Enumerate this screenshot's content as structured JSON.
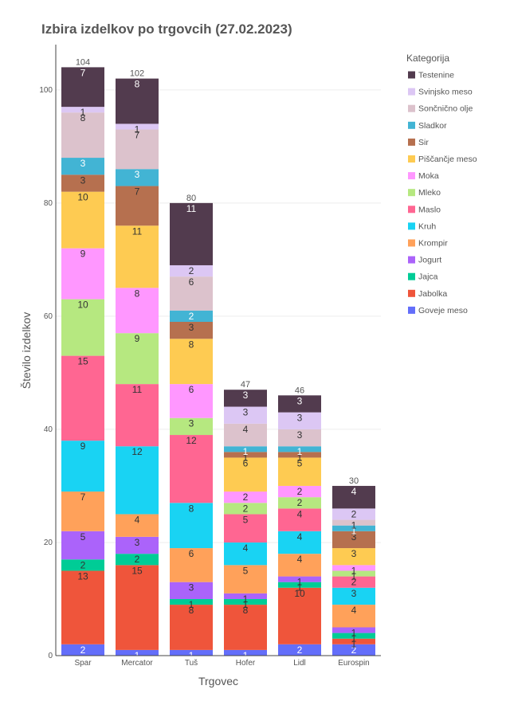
{
  "chart_data": {
    "type": "bar",
    "stacked": true,
    "title": "Izbira izdelkov po trgovcih (27.02.2023)",
    "xlabel": "Trgovec",
    "ylabel": "Število izdelkov",
    "ylim": [
      0,
      108
    ],
    "yticks": [
      0,
      20,
      40,
      60,
      80,
      100
    ],
    "grid": true,
    "legend_title": "Kategorija",
    "legend_position": "right",
    "categories": [
      "Spar",
      "Mercator",
      "Tuš",
      "Hofer",
      "Lidl",
      "Eurospin"
    ],
    "totals": [
      104,
      102,
      80,
      47,
      46,
      30
    ],
    "series": [
      {
        "name": "Goveje meso",
        "color": "#636efa",
        "values": [
          2,
          1,
          1,
          1,
          2,
          2
        ]
      },
      {
        "name": "Jabolka",
        "color": "#ef553b",
        "values": [
          13,
          15,
          8,
          8,
          10,
          1
        ]
      },
      {
        "name": "Jajca",
        "color": "#00cc96",
        "values": [
          2,
          2,
          1,
          1,
          1,
          1
        ]
      },
      {
        "name": "Jogurt",
        "color": "#ab63fa",
        "values": [
          5,
          3,
          3,
          1,
          1,
          1
        ]
      },
      {
        "name": "Krompir",
        "color": "#ffa15a",
        "values": [
          7,
          4,
          6,
          5,
          4,
          4
        ]
      },
      {
        "name": "Kruh",
        "color": "#19d3f3",
        "values": [
          9,
          12,
          8,
          4,
          4,
          3
        ]
      },
      {
        "name": "Maslo",
        "color": "#ff6692",
        "values": [
          15,
          11,
          12,
          5,
          4,
          2
        ]
      },
      {
        "name": "Mleko",
        "color": "#b6e880",
        "values": [
          10,
          9,
          3,
          2,
          2,
          1
        ]
      },
      {
        "name": "Moka",
        "color": "#ff97ff",
        "values": [
          9,
          8,
          6,
          2,
          2,
          1
        ]
      },
      {
        "name": "Piščančje meso",
        "color": "#fecb52",
        "values": [
          10,
          11,
          8,
          6,
          5,
          3
        ]
      },
      {
        "name": "Sir",
        "color": "#b6704f",
        "values": [
          3,
          7,
          3,
          1,
          1,
          3
        ]
      },
      {
        "name": "Sladkor",
        "color": "#42b4d4",
        "values": [
          3,
          3,
          2,
          1,
          1,
          1
        ]
      },
      {
        "name": "Sončnično olje",
        "color": "#dcc2cc",
        "values": [
          8,
          7,
          6,
          4,
          3,
          1
        ]
      },
      {
        "name": "Svinjsko meso",
        "color": "#dcc7f4",
        "values": [
          1,
          1,
          2,
          3,
          3,
          2
        ]
      },
      {
        "name": "Testenine",
        "color": "#523b4e",
        "values": [
          7,
          8,
          11,
          3,
          3,
          4
        ]
      }
    ]
  }
}
